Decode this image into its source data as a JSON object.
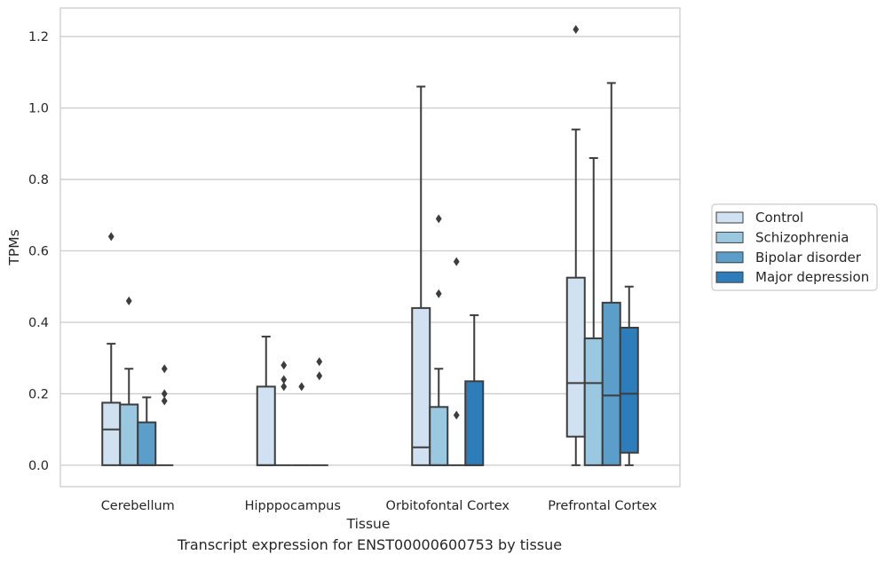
{
  "caption": "Transcript expression for ENST00000600753 by tissue",
  "chart_data": {
    "type": "box",
    "xlabel": "Tissue",
    "ylabel": "TPMs",
    "ylim": [
      -0.06,
      1.28
    ],
    "yticks": [
      0.0,
      0.2,
      0.4,
      0.6,
      0.8,
      1.0,
      1.2
    ],
    "ytick_labels": [
      "0.0",
      "0.2",
      "0.4",
      "0.6",
      "0.8",
      "1.0",
      "1.2"
    ],
    "grid": "horizontal",
    "legend_placement": "outside-right",
    "categories": [
      "Cerebellum",
      "Hipppocampus",
      "Orbitofontal Cortex",
      "Prefrontal Cortex"
    ],
    "series": [
      {
        "name": "Control",
        "color": "#d0e1f2",
        "boxes": [
          {
            "q1": 0.0,
            "median": 0.1,
            "q3": 0.175,
            "whisker_low": 0.0,
            "whisker_high": 0.34,
            "outliers": [
              0.64
            ]
          },
          {
            "q1": 0.0,
            "median": 0.0,
            "q3": 0.22,
            "whisker_low": 0.0,
            "whisker_high": 0.36,
            "outliers": []
          },
          {
            "q1": 0.0,
            "median": 0.05,
            "q3": 0.44,
            "whisker_low": 0.0,
            "whisker_high": 1.06,
            "outliers": []
          },
          {
            "q1": 0.08,
            "median": 0.23,
            "q3": 0.525,
            "whisker_low": 0.0,
            "whisker_high": 0.94,
            "outliers": [
              1.22
            ]
          }
        ]
      },
      {
        "name": "Schizophrenia",
        "color": "#9ac8e0",
        "boxes": [
          {
            "q1": 0.0,
            "median": 0.0,
            "q3": 0.17,
            "whisker_low": 0.0,
            "whisker_high": 0.27,
            "outliers": [
              0.46
            ]
          },
          {
            "q1": 0.0,
            "median": 0.0,
            "q3": 0.0,
            "whisker_low": 0.0,
            "whisker_high": 0.0,
            "outliers": [
              0.22,
              0.24,
              0.28
            ]
          },
          {
            "q1": 0.0,
            "median": 0.0,
            "q3": 0.163,
            "whisker_low": 0.0,
            "whisker_high": 0.27,
            "outliers": [
              0.48,
              0.69
            ]
          },
          {
            "q1": 0.0,
            "median": 0.23,
            "q3": 0.355,
            "whisker_low": 0.0,
            "whisker_high": 0.86,
            "outliers": []
          }
        ]
      },
      {
        "name": "Bipolar disorder",
        "color": "#5b9ec9",
        "boxes": [
          {
            "q1": 0.0,
            "median": 0.0,
            "q3": 0.12,
            "whisker_low": 0.0,
            "whisker_high": 0.19,
            "outliers": []
          },
          {
            "q1": 0.0,
            "median": 0.0,
            "q3": 0.0,
            "whisker_low": 0.0,
            "whisker_high": 0.0,
            "outliers": [
              0.22
            ]
          },
          {
            "q1": 0.0,
            "median": 0.0,
            "q3": 0.0,
            "whisker_low": 0.0,
            "whisker_high": 0.0,
            "outliers": [
              0.14,
              0.57
            ]
          },
          {
            "q1": 0.0,
            "median": 0.195,
            "q3": 0.455,
            "whisker_low": 0.0,
            "whisker_high": 1.07,
            "outliers": []
          }
        ]
      },
      {
        "name": "Major depression",
        "color": "#2d7dbb",
        "boxes": [
          {
            "q1": 0.0,
            "median": 0.0,
            "q3": 0.0,
            "whisker_low": 0.0,
            "whisker_high": 0.0,
            "outliers": [
              0.18,
              0.2,
              0.27
            ]
          },
          {
            "q1": 0.0,
            "median": 0.0,
            "q3": 0.0,
            "whisker_low": 0.0,
            "whisker_high": 0.0,
            "outliers": [
              0.25,
              0.29
            ]
          },
          {
            "q1": 0.0,
            "median": 0.0,
            "q3": 0.235,
            "whisker_low": 0.0,
            "whisker_high": 0.42,
            "outliers": []
          },
          {
            "q1": 0.035,
            "median": 0.2,
            "q3": 0.385,
            "whisker_low": 0.0,
            "whisker_high": 0.5,
            "outliers": []
          }
        ]
      }
    ]
  }
}
